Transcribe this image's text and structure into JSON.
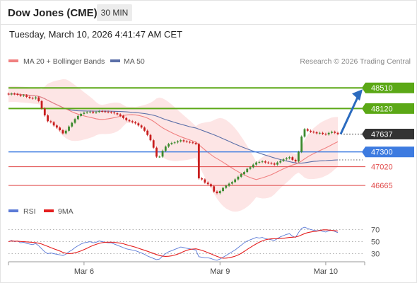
{
  "header": {
    "title": "Dow Jones (CME)",
    "interval": "30 MIN"
  },
  "timestamp": "Tuesday, March 10, 2026 4:41:47 AM CET",
  "legend": {
    "ma20": "MA 20 + Bollinger Bands",
    "ma50": "MA 50",
    "rsi": "RSI",
    "ma9": "9MA"
  },
  "copyright": "Research © 2026 Trading Central",
  "colors": {
    "up": "#3c8a2e",
    "down": "#c81e1e",
    "target": "#5ba816",
    "pivot": "#3d7be0",
    "support": "#e04848",
    "last": "#333333",
    "ma20": "#f08080",
    "ma50": "#5b6fa8",
    "band": "#fde2e2",
    "arrow": "#2b6bbf",
    "rsi": "#5b7ad6",
    "rsi_ma": "#e41e1e"
  },
  "chart_data": [
    {
      "type": "candlestick",
      "x_tick_labels": [
        "Mar 6",
        "Mar 9",
        "Mar 10"
      ],
      "levels": [
        {
          "value": 48510,
          "label": "48510",
          "kind": "target"
        },
        {
          "value": 48120,
          "label": "48120",
          "kind": "target"
        },
        {
          "value": 47637,
          "label": "47637",
          "kind": "last"
        },
        {
          "value": 47300,
          "label": "47300",
          "kind": "pivot"
        },
        {
          "value": 47020,
          "label": "47020",
          "kind": "support"
        },
        {
          "value": 46665,
          "label": "46665",
          "kind": "support"
        }
      ],
      "series": [
        {
          "name": "MA 20 + Bollinger Bands"
        },
        {
          "name": "MA 50"
        }
      ],
      "closes": [
        48390,
        48400,
        48395,
        48380,
        48360,
        48370,
        48340,
        48320,
        48310,
        48330,
        48260,
        48120,
        47990,
        47880,
        47860,
        47800,
        47760,
        47710,
        47650,
        47700,
        47780,
        47850,
        47920,
        47980,
        48020,
        48040,
        48050,
        48060,
        48040,
        48055,
        48070,
        48065,
        48060,
        48050,
        48045,
        48030,
        48010,
        47980,
        47940,
        47900,
        47880,
        47860,
        47840,
        47800,
        47760,
        47700,
        47620,
        47520,
        47380,
        47210,
        47210,
        47320,
        47400,
        47450,
        47470,
        47480,
        47500,
        47520,
        47500,
        47490,
        47480,
        47470,
        47450,
        46800,
        46780,
        46720,
        46690,
        46650,
        46550,
        46520,
        46560,
        46620,
        46660,
        46700,
        46730,
        46780,
        46830,
        46880,
        46920,
        46980,
        47010,
        47060,
        47100,
        47110,
        47120,
        47100,
        47090,
        47080,
        47060,
        47100,
        47130,
        47160,
        47180,
        47200,
        47150,
        47120,
        47300,
        47590,
        47730,
        47700,
        47680,
        47670,
        47650,
        47660,
        47640,
        47630,
        47660,
        47680,
        47660,
        47637
      ],
      "ylim": [
        46400,
        48700
      ]
    },
    {
      "type": "line",
      "series": [
        {
          "name": "RSI",
          "values": [
            50,
            52,
            50,
            51,
            48,
            49,
            47,
            46,
            45,
            47,
            43,
            38,
            33,
            30,
            31,
            30,
            29,
            28,
            27,
            29,
            33,
            36,
            40,
            43,
            46,
            48,
            49,
            50,
            48,
            49,
            51,
            50,
            49,
            48,
            48,
            46,
            44,
            42,
            40,
            38,
            37,
            36,
            35,
            33,
            31,
            29,
            26,
            24,
            22,
            20,
            21,
            26,
            30,
            33,
            35,
            37,
            39,
            41,
            40,
            39,
            38,
            37,
            36,
            25,
            24,
            23,
            23,
            22,
            20,
            19,
            21,
            24,
            27,
            30,
            33,
            36,
            40,
            44,
            48,
            51,
            53,
            55,
            57,
            56,
            57,
            55,
            54,
            53,
            52,
            55,
            58,
            60,
            62,
            63,
            59,
            57,
            65,
            72,
            74,
            72,
            70,
            69,
            68,
            69,
            67,
            66,
            68,
            69,
            67,
            65
          ]
        },
        {
          "name": "9MA"
        }
      ],
      "ylim": [
        20,
        80
      ],
      "y_ticks": [
        70,
        50,
        30
      ]
    }
  ]
}
